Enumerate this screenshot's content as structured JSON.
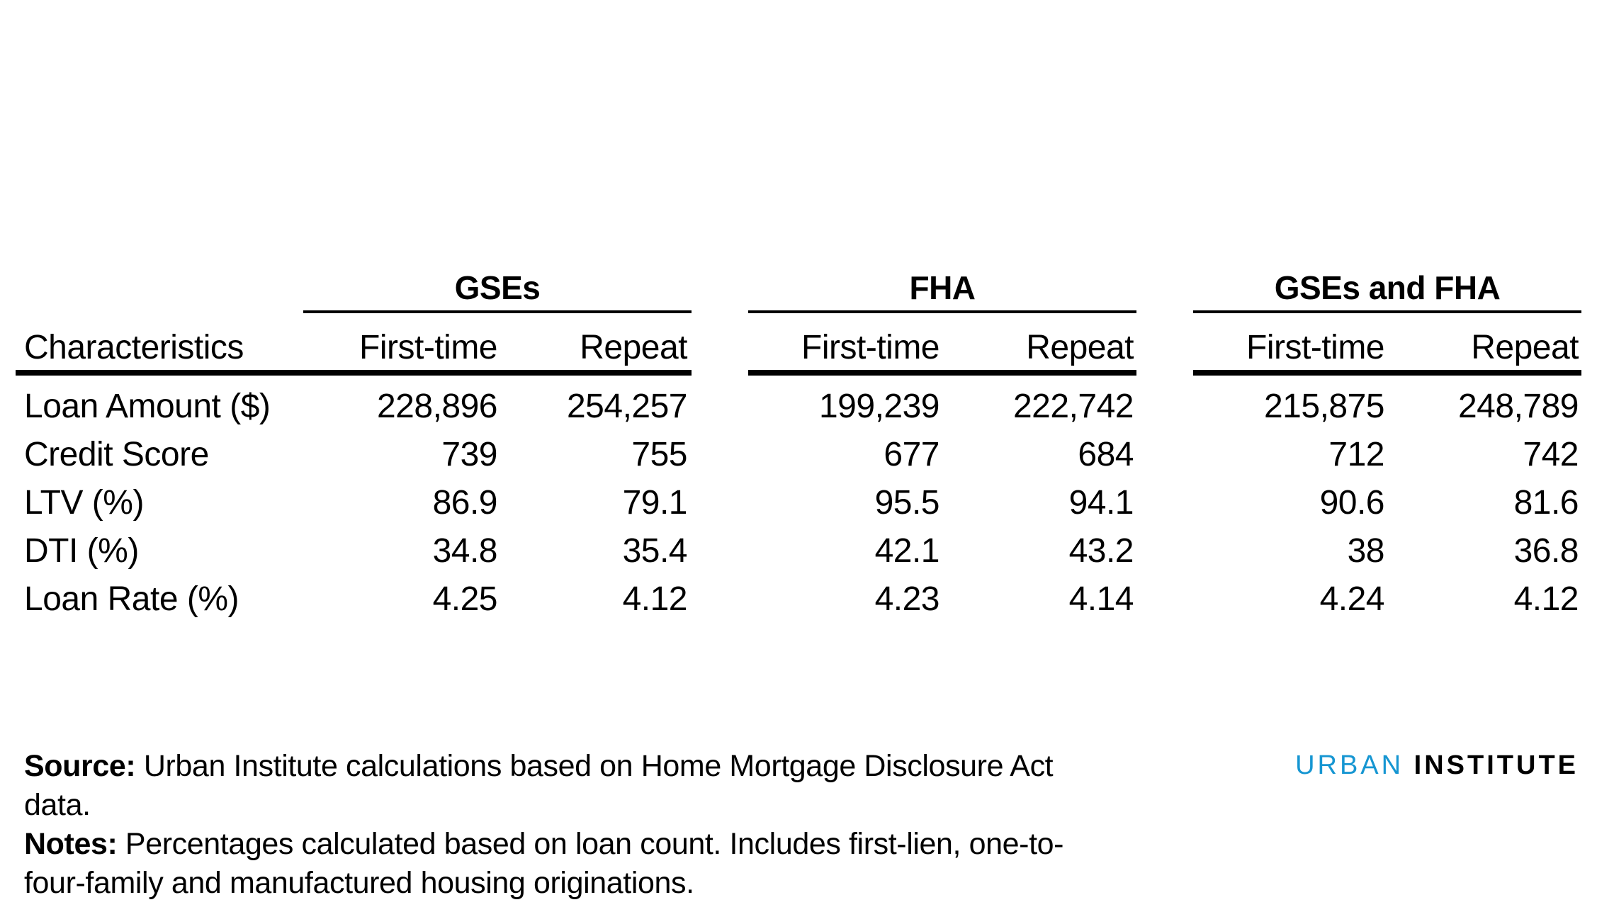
{
  "table": {
    "groups": [
      "GSEs",
      "FHA",
      "GSEs and FHA"
    ],
    "columns": {
      "label": "Characteristics",
      "gses_first": "First-time",
      "gses_repeat": "Repeat",
      "fha_first": "First-time",
      "fha_repeat": "Repeat",
      "both_first": "First-time",
      "both_repeat": "Repeat"
    },
    "rows": [
      {
        "label": "Loan Amount ($)",
        "values": [
          "228,896",
          "254,257",
          "199,239",
          "222,742",
          "215,875",
          "248,789"
        ]
      },
      {
        "label": "Credit Score",
        "values": [
          "739",
          "755",
          "677",
          "684",
          "712",
          "742"
        ]
      },
      {
        "label": "LTV (%)",
        "values": [
          "86.9",
          "79.1",
          "95.5",
          "94.1",
          "90.6",
          "81.6"
        ]
      },
      {
        "label": "DTI (%)",
        "values": [
          "34.8",
          "35.4",
          "42.1",
          "43.2",
          "38",
          "36.8"
        ]
      },
      {
        "label": "Loan Rate (%)",
        "values": [
          "4.25",
          "4.12",
          "4.23",
          "4.14",
          "4.24",
          "4.12"
        ]
      }
    ]
  },
  "footnotes": {
    "source_label": "Source:",
    "source_text": " Urban Institute calculations based on Home Mortgage Disclosure Act data.",
    "notes_label": "Notes:",
    "notes_text": " Percentages calculated based on loan count. Includes first-lien, one-to-four-family and manufactured housing originations."
  },
  "logo": {
    "word1": "URBAN",
    "word2": "INSTITUTE",
    "accent_color": "#1696d2"
  }
}
